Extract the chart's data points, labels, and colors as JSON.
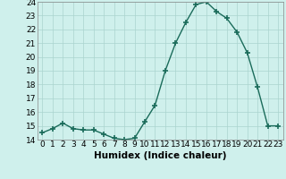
{
  "x": [
    0,
    1,
    2,
    3,
    4,
    5,
    6,
    7,
    8,
    9,
    10,
    11,
    12,
    13,
    14,
    15,
    16,
    17,
    18,
    19,
    20,
    21,
    22,
    23
  ],
  "y": [
    14.5,
    14.8,
    15.2,
    14.8,
    14.7,
    14.7,
    14.4,
    14.1,
    14.0,
    14.1,
    15.3,
    16.5,
    19.0,
    21.0,
    22.5,
    23.8,
    24.0,
    23.3,
    22.8,
    21.8,
    20.3,
    17.8,
    15.0,
    15.0
  ],
  "xlabel": "Humidex (Indice chaleur)",
  "ylim": [
    14,
    24
  ],
  "xlim": [
    -0.5,
    23.5
  ],
  "yticks": [
    14,
    15,
    16,
    17,
    18,
    19,
    20,
    21,
    22,
    23,
    24
  ],
  "xticks": [
    0,
    1,
    2,
    3,
    4,
    5,
    6,
    7,
    8,
    9,
    10,
    11,
    12,
    13,
    14,
    15,
    16,
    17,
    18,
    19,
    20,
    21,
    22,
    23
  ],
  "line_color": "#1a6b5a",
  "marker": "+",
  "marker_size": 4,
  "marker_lw": 1.2,
  "bg_color": "#cff0ec",
  "grid_color": "#aad4ce",
  "xlabel_fontsize": 7.5,
  "tick_fontsize": 6.5,
  "linewidth": 1.0
}
